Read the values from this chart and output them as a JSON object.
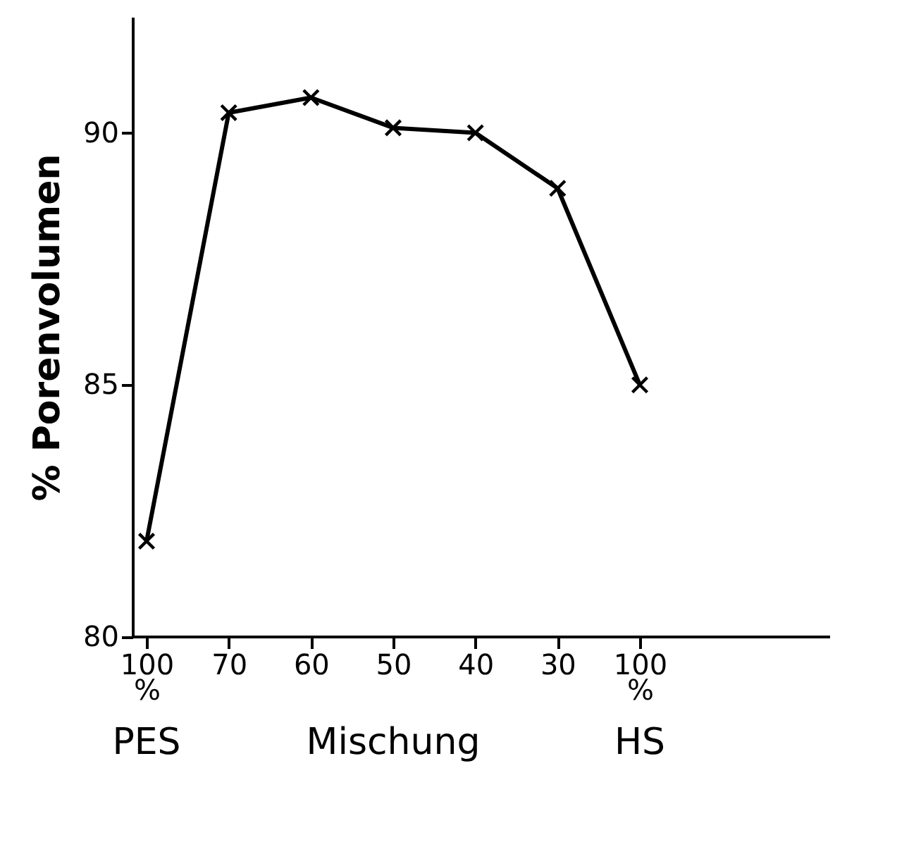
{
  "chart_data": {
    "type": "line",
    "ylabel": "% Porenvolumen",
    "categories": [
      "100\n%",
      "70",
      "60",
      "50",
      "40",
      "30",
      "100\n%"
    ],
    "series": [
      {
        "color": "#000000",
        "values": [
          81.9,
          90.4,
          90.7,
          90.1,
          90.0,
          88.9,
          85.0
        ]
      }
    ],
    "ylim": [
      80,
      92.3
    ],
    "yticks": [
      80,
      85,
      90
    ],
    "annotations": [
      "PES",
      "Mischung",
      "HS"
    ],
    "marker": "cross",
    "line_style": "solid",
    "grid": false
  }
}
